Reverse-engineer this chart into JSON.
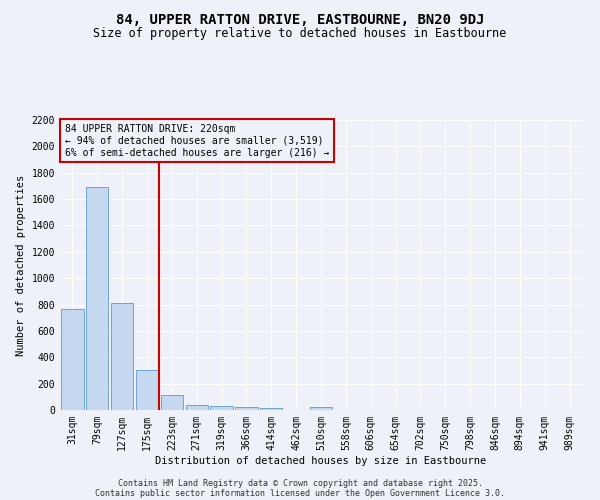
{
  "title": "84, UPPER RATTON DRIVE, EASTBOURNE, BN20 9DJ",
  "subtitle": "Size of property relative to detached houses in Eastbourne",
  "xlabel": "Distribution of detached houses by size in Eastbourne",
  "ylabel": "Number of detached properties",
  "categories": [
    "31sqm",
    "79sqm",
    "127sqm",
    "175sqm",
    "223sqm",
    "271sqm",
    "319sqm",
    "366sqm",
    "414sqm",
    "462sqm",
    "510sqm",
    "558sqm",
    "606sqm",
    "654sqm",
    "702sqm",
    "750sqm",
    "798sqm",
    "846sqm",
    "894sqm",
    "941sqm",
    "989sqm"
  ],
  "values": [
    770,
    1690,
    810,
    300,
    115,
    38,
    30,
    20,
    15,
    0,
    20,
    0,
    0,
    0,
    0,
    0,
    0,
    0,
    0,
    0,
    0
  ],
  "bar_color": "#c5d8f0",
  "bar_edge_color": "#5b9bd5",
  "vline_color": "#cc0000",
  "annotation_text": "84 UPPER RATTON DRIVE: 220sqm\n← 94% of detached houses are smaller (3,519)\n6% of semi-detached houses are larger (216) →",
  "annotation_box_color": "#cc0000",
  "annotation_text_fontsize": 7,
  "bg_color": "#eef2f8",
  "grid_color": "#ffffff",
  "title_fontsize": 10,
  "subtitle_fontsize": 8.5,
  "ylabel_fontsize": 7.5,
  "xlabel_fontsize": 7.5,
  "tick_fontsize": 7,
  "footer_line1": "Contains HM Land Registry data © Crown copyright and database right 2025.",
  "footer_line2": "Contains public sector information licensed under the Open Government Licence 3.0.",
  "footer_fontsize": 6,
  "ylim": [
    0,
    2200
  ],
  "yticks": [
    0,
    200,
    400,
    600,
    800,
    1000,
    1200,
    1400,
    1600,
    1800,
    2000,
    2200
  ]
}
